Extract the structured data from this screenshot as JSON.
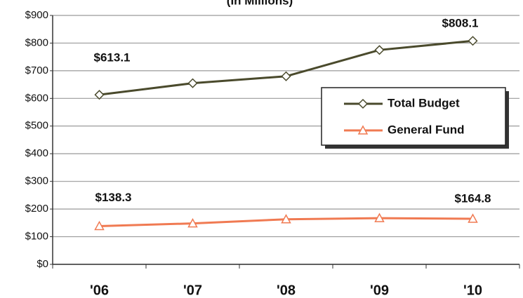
{
  "chart_data": {
    "type": "line",
    "title": "(In Millions)",
    "categories": [
      "'06",
      "'07",
      "'08",
      "'09",
      "'10"
    ],
    "series": [
      {
        "name": "Total Budget",
        "color": "#4a4a2c",
        "marker": "diamond",
        "values": [
          613.1,
          655,
          680,
          775,
          808.1
        ],
        "value_labels": [
          "$613.1",
          null,
          null,
          null,
          "$808.1"
        ]
      },
      {
        "name": "General Fund",
        "color": "#f07a52",
        "marker": "triangle",
        "values": [
          138.3,
          148,
          163,
          167,
          164.8
        ],
        "value_labels": [
          "$138.3",
          null,
          null,
          null,
          "$164.8"
        ]
      }
    ],
    "ylim": [
      0,
      900
    ],
    "yticks": [
      {
        "value": 0,
        "label": "$0"
      },
      {
        "value": 100,
        "label": "$100"
      },
      {
        "value": 200,
        "label": "$200"
      },
      {
        "value": 300,
        "label": "$300"
      },
      {
        "value": 400,
        "label": "$400"
      },
      {
        "value": 500,
        "label": "$500"
      },
      {
        "value": 600,
        "label": "$600"
      },
      {
        "value": 700,
        "label": "$700"
      },
      {
        "value": 800,
        "label": "$800"
      },
      {
        "value": 900,
        "label": "$900"
      }
    ],
    "grid": true,
    "legend": "right"
  }
}
